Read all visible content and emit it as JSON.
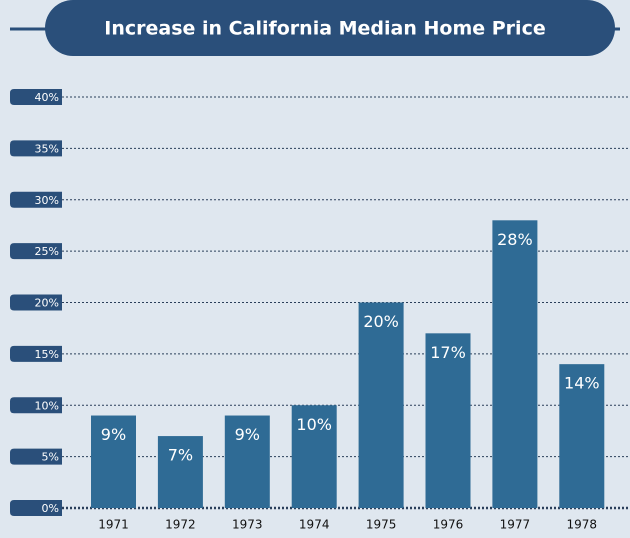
{
  "chart_data": {
    "type": "bar",
    "title": "Increase in California Median Home Price",
    "categories": [
      "1971",
      "1972",
      "1973",
      "1974",
      "1975",
      "1976",
      "1977",
      "1978"
    ],
    "values": [
      9,
      7,
      9,
      10,
      20,
      17,
      28,
      14
    ],
    "value_labels": [
      "9%",
      "7%",
      "9%",
      "10%",
      "20%",
      "17%",
      "28%",
      "14%"
    ],
    "color": "#2f6b95",
    "ylim": [
      0,
      40
    ],
    "yticks": [
      {
        "value": 0,
        "label": "0%"
      },
      {
        "value": 5,
        "label": "5%"
      },
      {
        "value": 10,
        "label": "10%"
      },
      {
        "value": 15,
        "label": "15%"
      },
      {
        "value": 20,
        "label": "20%"
      },
      {
        "value": 25,
        "label": "25%"
      },
      {
        "value": 30,
        "label": "30%"
      },
      {
        "value": 35,
        "label": "35%"
      },
      {
        "value": 40,
        "label": "40%"
      }
    ],
    "grid": true
  }
}
